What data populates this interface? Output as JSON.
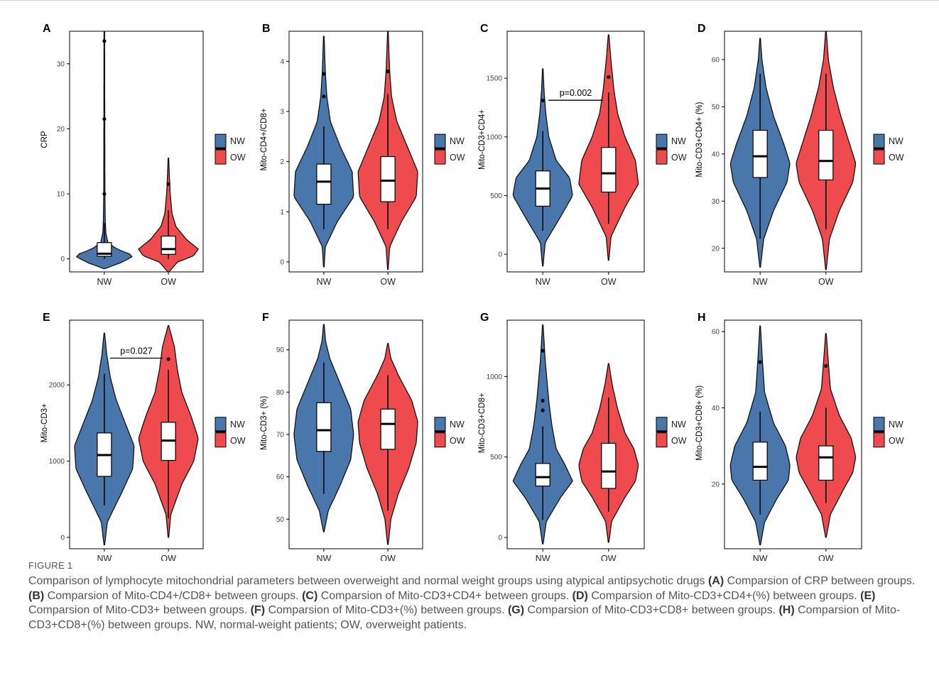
{
  "colors": {
    "nw": "#4a77ab",
    "ow": "#ef4b4e",
    "outline": "#111111"
  },
  "legend": {
    "nw_label": "NW",
    "ow_label": "OW"
  },
  "chart_data": [
    {
      "type": "violin",
      "panel": "A",
      "ylabel": "CRP",
      "categories": [
        "NW",
        "OW"
      ],
      "ylim": [
        -2,
        35
      ],
      "yticks": [
        0,
        10,
        20,
        30
      ],
      "series": [
        {
          "name": "NW",
          "min": -1.5,
          "max": 35,
          "q1": 0.4,
          "median": 0.8,
          "q3": 2.5,
          "whisker_low": 0,
          "whisker_high": 5.5,
          "outliers": [
            10,
            21.5,
            33.5
          ],
          "density": [
            [
              -1.5,
              0.02
            ],
            [
              -0.5,
              0.6
            ],
            [
              0.5,
              1.0
            ],
            [
              1.5,
              0.42
            ],
            [
              2.5,
              0.12
            ],
            [
              4,
              0.05
            ],
            [
              6,
              0.03
            ],
            [
              10,
              0.02
            ],
            [
              20,
              0.015
            ],
            [
              35,
              0.01
            ]
          ]
        },
        {
          "name": "OW",
          "min": -2,
          "max": 15.5,
          "q1": 0.7,
          "median": 1.5,
          "q3": 3.5,
          "whisker_low": 0,
          "whisker_high": 7.5,
          "outliers": [
            11.5
          ],
          "density": [
            [
              -2,
              0.02
            ],
            [
              -0.5,
              0.3
            ],
            [
              0.5,
              0.85
            ],
            [
              1.5,
              1.0
            ],
            [
              3,
              0.6
            ],
            [
              5,
              0.25
            ],
            [
              7,
              0.12
            ],
            [
              10,
              0.06
            ],
            [
              13,
              0.03
            ],
            [
              15.5,
              0.01
            ]
          ]
        }
      ]
    },
    {
      "type": "violin",
      "panel": "B",
      "ylabel": "Mito-CD4+/CD8+",
      "categories": [
        "NW",
        "OW"
      ],
      "ylim": [
        -0.2,
        4.6
      ],
      "yticks": [
        0,
        1,
        2,
        3,
        4
      ],
      "series": [
        {
          "name": "NW",
          "min": -0.1,
          "max": 4.5,
          "q1": 1.15,
          "median": 1.6,
          "q3": 1.95,
          "whisker_low": 0.65,
          "whisker_high": 2.7,
          "outliers": [
            3.3,
            3.75
          ],
          "density": [
            [
              -0.1,
              0.01
            ],
            [
              0.3,
              0.05
            ],
            [
              0.8,
              0.45
            ],
            [
              1.3,
              1.0
            ],
            [
              1.8,
              0.95
            ],
            [
              2.3,
              0.55
            ],
            [
              2.8,
              0.22
            ],
            [
              3.3,
              0.1
            ],
            [
              3.8,
              0.05
            ],
            [
              4.5,
              0.01
            ]
          ]
        },
        {
          "name": "OW",
          "min": -0.15,
          "max": 4.6,
          "q1": 1.2,
          "median": 1.62,
          "q3": 2.1,
          "whisker_low": 0.65,
          "whisker_high": 3.35,
          "outliers": [
            3.8
          ],
          "density": [
            [
              -0.15,
              0.01
            ],
            [
              0.3,
              0.06
            ],
            [
              0.8,
              0.45
            ],
            [
              1.3,
              0.95
            ],
            [
              1.8,
              1.0
            ],
            [
              2.3,
              0.65
            ],
            [
              2.8,
              0.3
            ],
            [
              3.3,
              0.12
            ],
            [
              3.8,
              0.06
            ],
            [
              4.6,
              0.01
            ]
          ]
        }
      ]
    },
    {
      "type": "violin",
      "panel": "C",
      "ylabel": "Mito-CD3+CD4+",
      "categories": [
        "NW",
        "OW"
      ],
      "ylim": [
        -150,
        1900
      ],
      "yticks": [
        0,
        500,
        1000,
        1500
      ],
      "annotation": "p=0.002",
      "series": [
        {
          "name": "NW",
          "min": -100,
          "max": 1580,
          "q1": 410,
          "median": 560,
          "q3": 710,
          "whisker_low": 200,
          "whisker_high": 1050,
          "outliers": [
            1310
          ],
          "density": [
            [
              -100,
              0.01
            ],
            [
              100,
              0.08
            ],
            [
              300,
              0.55
            ],
            [
              500,
              1.0
            ],
            [
              650,
              0.9
            ],
            [
              800,
              0.45
            ],
            [
              1000,
              0.2
            ],
            [
              1200,
              0.1
            ],
            [
              1400,
              0.04
            ],
            [
              1580,
              0.01
            ]
          ]
        },
        {
          "name": "OW",
          "min": -50,
          "max": 1870,
          "q1": 530,
          "median": 690,
          "q3": 910,
          "whisker_low": 260,
          "whisker_high": 1380,
          "outliers": [
            1510
          ],
          "density": [
            [
              -50,
              0.01
            ],
            [
              150,
              0.08
            ],
            [
              400,
              0.55
            ],
            [
              600,
              1.0
            ],
            [
              800,
              0.9
            ],
            [
              1000,
              0.55
            ],
            [
              1200,
              0.3
            ],
            [
              1400,
              0.18
            ],
            [
              1650,
              0.08
            ],
            [
              1870,
              0.01
            ]
          ]
        }
      ]
    },
    {
      "type": "violin",
      "panel": "D",
      "ylabel": "Mito-CD3+CD4+ (%)",
      "categories": [
        "NW",
        "OW"
      ],
      "ylim": [
        15,
        66
      ],
      "yticks": [
        20,
        30,
        40,
        50,
        60
      ],
      "series": [
        {
          "name": "NW",
          "min": 16,
          "max": 64.5,
          "q1": 35,
          "median": 39.5,
          "q3": 45,
          "whisker_low": 22,
          "whisker_high": 57,
          "outliers": [],
          "density": [
            [
              16,
              0.01
            ],
            [
              22,
              0.12
            ],
            [
              28,
              0.45
            ],
            [
              34,
              0.9
            ],
            [
              38,
              1.0
            ],
            [
              42,
              0.8
            ],
            [
              48,
              0.45
            ],
            [
              54,
              0.2
            ],
            [
              60,
              0.06
            ],
            [
              64.5,
              0.01
            ]
          ]
        },
        {
          "name": "OW",
          "min": 15.5,
          "max": 66,
          "q1": 34.5,
          "median": 38.5,
          "q3": 45,
          "whisker_low": 24,
          "whisker_high": 57,
          "outliers": [],
          "density": [
            [
              15.5,
              0.01
            ],
            [
              22,
              0.12
            ],
            [
              28,
              0.45
            ],
            [
              34,
              0.9
            ],
            [
              38,
              1.0
            ],
            [
              42,
              0.8
            ],
            [
              48,
              0.5
            ],
            [
              54,
              0.25
            ],
            [
              60,
              0.08
            ],
            [
              66,
              0.01
            ]
          ]
        }
      ]
    },
    {
      "type": "violin",
      "panel": "E",
      "ylabel": "Mito-CD3+",
      "categories": [
        "NW",
        "OW"
      ],
      "ylim": [
        -150,
        2850
      ],
      "yticks": [
        0,
        1000,
        2000
      ],
      "annotation": "p=0.027",
      "series": [
        {
          "name": "NW",
          "min": -100,
          "max": 2680,
          "q1": 800,
          "median": 1080,
          "q3": 1370,
          "whisker_low": 420,
          "whisker_high": 2150,
          "outliers": [],
          "density": [
            [
              -100,
              0.01
            ],
            [
              200,
              0.1
            ],
            [
              600,
              0.6
            ],
            [
              900,
              0.95
            ],
            [
              1200,
              1.0
            ],
            [
              1500,
              0.7
            ],
            [
              1800,
              0.4
            ],
            [
              2100,
              0.2
            ],
            [
              2400,
              0.08
            ],
            [
              2680,
              0.01
            ]
          ]
        },
        {
          "name": "OW",
          "min": 0,
          "max": 2780,
          "q1": 1010,
          "median": 1270,
          "q3": 1510,
          "whisker_low": 250,
          "whisker_high": 2200,
          "outliers": [
            2340
          ],
          "density": [
            [
              0,
              0.01
            ],
            [
              300,
              0.08
            ],
            [
              700,
              0.45
            ],
            [
              1000,
              0.85
            ],
            [
              1300,
              1.0
            ],
            [
              1600,
              0.75
            ],
            [
              1900,
              0.45
            ],
            [
              2200,
              0.3
            ],
            [
              2500,
              0.2
            ],
            [
              2780,
              0.01
            ]
          ]
        }
      ]
    },
    {
      "type": "violin",
      "panel": "F",
      "ylabel": "Mito-CD3+ (%)",
      "categories": [
        "NW",
        "OW"
      ],
      "ylim": [
        43,
        97
      ],
      "yticks": [
        50,
        60,
        70,
        80,
        90
      ],
      "series": [
        {
          "name": "NW",
          "min": 47,
          "max": 96,
          "q1": 66,
          "median": 71,
          "q3": 77.5,
          "whisker_low": 56,
          "whisker_high": 87,
          "outliers": [],
          "density": [
            [
              47,
              0.01
            ],
            [
              52,
              0.15
            ],
            [
              58,
              0.55
            ],
            [
              64,
              0.9
            ],
            [
              70,
              1.0
            ],
            [
              76,
              0.9
            ],
            [
              82,
              0.55
            ],
            [
              88,
              0.2
            ],
            [
              92,
              0.06
            ],
            [
              96,
              0.01
            ]
          ]
        },
        {
          "name": "OW",
          "min": 44,
          "max": 91.5,
          "q1": 66.5,
          "median": 72.5,
          "q3": 76,
          "whisker_low": 52,
          "whisker_high": 84,
          "outliers": [],
          "density": [
            [
              44,
              0.01
            ],
            [
              50,
              0.1
            ],
            [
              56,
              0.35
            ],
            [
              62,
              0.7
            ],
            [
              68,
              0.95
            ],
            [
              73,
              1.0
            ],
            [
              78,
              0.8
            ],
            [
              84,
              0.35
            ],
            [
              88,
              0.1
            ],
            [
              91.5,
              0.01
            ]
          ]
        }
      ]
    },
    {
      "type": "violin",
      "panel": "G",
      "ylabel": "Mito-CD3+CD8+",
      "categories": [
        "NW",
        "OW"
      ],
      "ylim": [
        -70,
        1350
      ],
      "yticks": [
        0,
        500,
        1000
      ],
      "series": [
        {
          "name": "NW",
          "min": -40,
          "max": 1320,
          "q1": 320,
          "median": 375,
          "q3": 460,
          "whisker_low": 110,
          "whisker_high": 690,
          "outliers": [
            790,
            850,
            1160
          ],
          "density": [
            [
              -40,
              0.01
            ],
            [
              100,
              0.12
            ],
            [
              250,
              0.6
            ],
            [
              350,
              1.0
            ],
            [
              450,
              0.75
            ],
            [
              550,
              0.45
            ],
            [
              700,
              0.3
            ],
            [
              850,
              0.2
            ],
            [
              1100,
              0.08
            ],
            [
              1320,
              0.01
            ]
          ]
        },
        {
          "name": "OW",
          "min": -30,
          "max": 1080,
          "q1": 305,
          "median": 410,
          "q3": 585,
          "whisker_low": 160,
          "whisker_high": 870,
          "outliers": [],
          "density": [
            [
              -30,
              0.01
            ],
            [
              100,
              0.1
            ],
            [
              250,
              0.55
            ],
            [
              350,
              0.9
            ],
            [
              450,
              1.0
            ],
            [
              550,
              0.85
            ],
            [
              650,
              0.55
            ],
            [
              800,
              0.3
            ],
            [
              950,
              0.12
            ],
            [
              1080,
              0.01
            ]
          ]
        }
      ]
    },
    {
      "type": "violin",
      "panel": "H",
      "ylabel": "Mito-CD3+CD8+ (%)",
      "categories": [
        "NW",
        "OW"
      ],
      "ylim": [
        3,
        63
      ],
      "yticks": [
        20,
        40,
        60
      ],
      "series": [
        {
          "name": "NW",
          "min": 4,
          "max": 61.5,
          "q1": 21,
          "median": 24.5,
          "q3": 31,
          "whisker_low": 12,
          "whisker_high": 39,
          "outliers": [
            52
          ],
          "density": [
            [
              4,
              0.01
            ],
            [
              10,
              0.15
            ],
            [
              16,
              0.55
            ],
            [
              21,
              0.95
            ],
            [
              25,
              1.0
            ],
            [
              30,
              0.85
            ],
            [
              36,
              0.45
            ],
            [
              44,
              0.15
            ],
            [
              52,
              0.08
            ],
            [
              61.5,
              0.01
            ]
          ]
        },
        {
          "name": "OW",
          "min": 6,
          "max": 59.5,
          "q1": 21,
          "median": 27,
          "q3": 30,
          "whisker_low": 15,
          "whisker_high": 40,
          "outliers": [
            51
          ],
          "density": [
            [
              6,
              0.01
            ],
            [
              12,
              0.15
            ],
            [
              18,
              0.55
            ],
            [
              23,
              0.9
            ],
            [
              27,
              1.0
            ],
            [
              32,
              0.85
            ],
            [
              38,
              0.45
            ],
            [
              45,
              0.15
            ],
            [
              52,
              0.08
            ],
            [
              59.5,
              0.01
            ]
          ]
        }
      ]
    }
  ],
  "caption": {
    "figure_label": "FIGURE 1",
    "intro": "Comparison of lymphocyte mitochondrial parameters between overweight and normal weight groups using atypical antipsychotic drugs ",
    "parts": [
      {
        "tag": "(A)",
        "text": " Comparsion of CRP between groups. "
      },
      {
        "tag": "(B)",
        "text": " Comparsion of Mito-CD4+/CD8+ between groups. "
      },
      {
        "tag": "(C)",
        "text": " Comparsion of Mito-CD3+CD4+ between groups. "
      },
      {
        "tag": "(D)",
        "text": " Comparsion of Mito-CD3+CD4+(%) between groups. "
      },
      {
        "tag": "(E)",
        "text": " Comparsion of Mito-CD3+ between groups. "
      },
      {
        "tag": "(F)",
        "text": " Comparsion of Mito-CD3+(%) between groups. "
      },
      {
        "tag": "(G)",
        "text": " Comparsion of Mito-CD3+CD8+ between groups. "
      },
      {
        "tag": "(H)",
        "text": " Comparsion of Mito-CD3+CD8+(%) between groups. NW, normal-weight patients; OW, overweight patients."
      }
    ]
  }
}
